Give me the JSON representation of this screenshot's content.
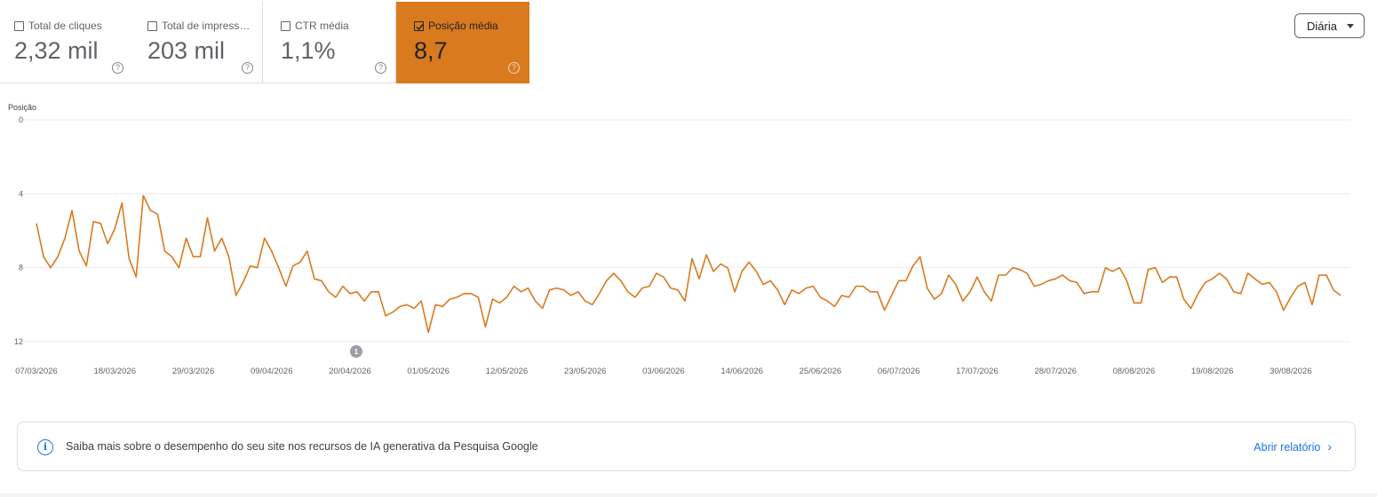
{
  "metrics": [
    {
      "label": "Total de cliques",
      "value": "2,32 mil",
      "checked": false
    },
    {
      "label": "Total de impressões",
      "value": "203 mil",
      "checked": false
    },
    {
      "label": "CTR média",
      "value": "1,1%",
      "checked": false
    },
    {
      "label": "Posição média",
      "value": "8,7",
      "checked": true
    }
  ],
  "help_glyph": "?",
  "period": {
    "label": "Diária"
  },
  "colors": {
    "accent": "#d97a1f",
    "line": "#d97a1f",
    "grid": "#ebebeb",
    "link": "#1a73e8"
  },
  "chart_data": {
    "type": "line",
    "ylabel": "Posição",
    "ylim": [
      0,
      12
    ],
    "y_inverted": true,
    "yticks": [
      "0",
      "4",
      "8",
      "12"
    ],
    "xticks": [
      "07/03/2026",
      "18/03/2026",
      "29/03/2026",
      "09/04/2026",
      "20/04/2026",
      "01/05/2026",
      "12/05/2026",
      "23/05/2026",
      "03/06/2026",
      "14/06/2026",
      "25/06/2026",
      "06/07/2026",
      "17/07/2026",
      "28/07/2026",
      "08/08/2026",
      "19/08/2026",
      "30/08/2026"
    ],
    "annotation": {
      "label": "1",
      "date": "20/04/2026"
    },
    "series": [
      {
        "x_start": "07/03/2026",
        "x_step_days": 1,
        "values": [
          5.6,
          7.4,
          8.0,
          7.4,
          6.4,
          4.9,
          7.1,
          7.9,
          5.5,
          5.6,
          6.7,
          5.9,
          4.5,
          7.5,
          8.5,
          4.1,
          4.9,
          5.1,
          7.1,
          7.4,
          8.0,
          6.4,
          7.4,
          7.4,
          5.3,
          7.1,
          6.4,
          7.4,
          9.5,
          8.8,
          7.9,
          8.0,
          6.4,
          7.1,
          8.0,
          9.0,
          7.9,
          7.7,
          7.1,
          8.6,
          8.7,
          9.3,
          9.6,
          9.0,
          9.4,
          9.3,
          9.8,
          9.3,
          9.3,
          10.6,
          10.4,
          10.1,
          10.0,
          10.2,
          9.8,
          11.5,
          10.0,
          10.1,
          9.7,
          9.6,
          9.4,
          9.4,
          9.6,
          11.2,
          9.7,
          9.9,
          9.6,
          9.0,
          9.3,
          9.1,
          9.8,
          10.2,
          9.2,
          9.1,
          9.2,
          9.5,
          9.3,
          9.8,
          10.0,
          9.4,
          8.7,
          8.3,
          8.7,
          9.3,
          9.6,
          9.1,
          9.0,
          8.3,
          8.5,
          9.1,
          9.2,
          9.8,
          7.5,
          8.6,
          7.3,
          8.2,
          7.8,
          8.0,
          9.3,
          8.2,
          7.7,
          8.2,
          8.9,
          8.7,
          9.2,
          10.0,
          9.2,
          9.4,
          9.1,
          9.0,
          9.6,
          9.8,
          10.1,
          9.5,
          9.6,
          9.0,
          9.0,
          9.3,
          9.3,
          10.3,
          9.5,
          8.7,
          8.7,
          7.9,
          7.4,
          9.1,
          9.7,
          9.4,
          8.4,
          8.9,
          9.8,
          9.3,
          8.5,
          9.3,
          9.8,
          8.4,
          8.4,
          8.0,
          8.1,
          8.3,
          9.0,
          8.9,
          8.7,
          8.6,
          8.4,
          8.7,
          8.8,
          9.4,
          9.3,
          9.3,
          8.0,
          8.2,
          8.0,
          8.7,
          9.9,
          9.9,
          8.1,
          8.0,
          8.8,
          8.5,
          8.5,
          9.7,
          10.2,
          9.4,
          8.8,
          8.6,
          8.3,
          8.6,
          9.3,
          9.4,
          8.3,
          8.6,
          8.9,
          8.8,
          9.3,
          10.3,
          9.6,
          9.0,
          8.8,
          10.0,
          8.4,
          8.4,
          9.2,
          9.5
        ]
      }
    ]
  },
  "banner": {
    "message": "Saiba mais sobre o desempenho do seu site nos recursos de IA generativa da Pesquisa Google",
    "link_label": "Abrir relatório",
    "link_chevron": "›",
    "info_glyph": "i"
  }
}
